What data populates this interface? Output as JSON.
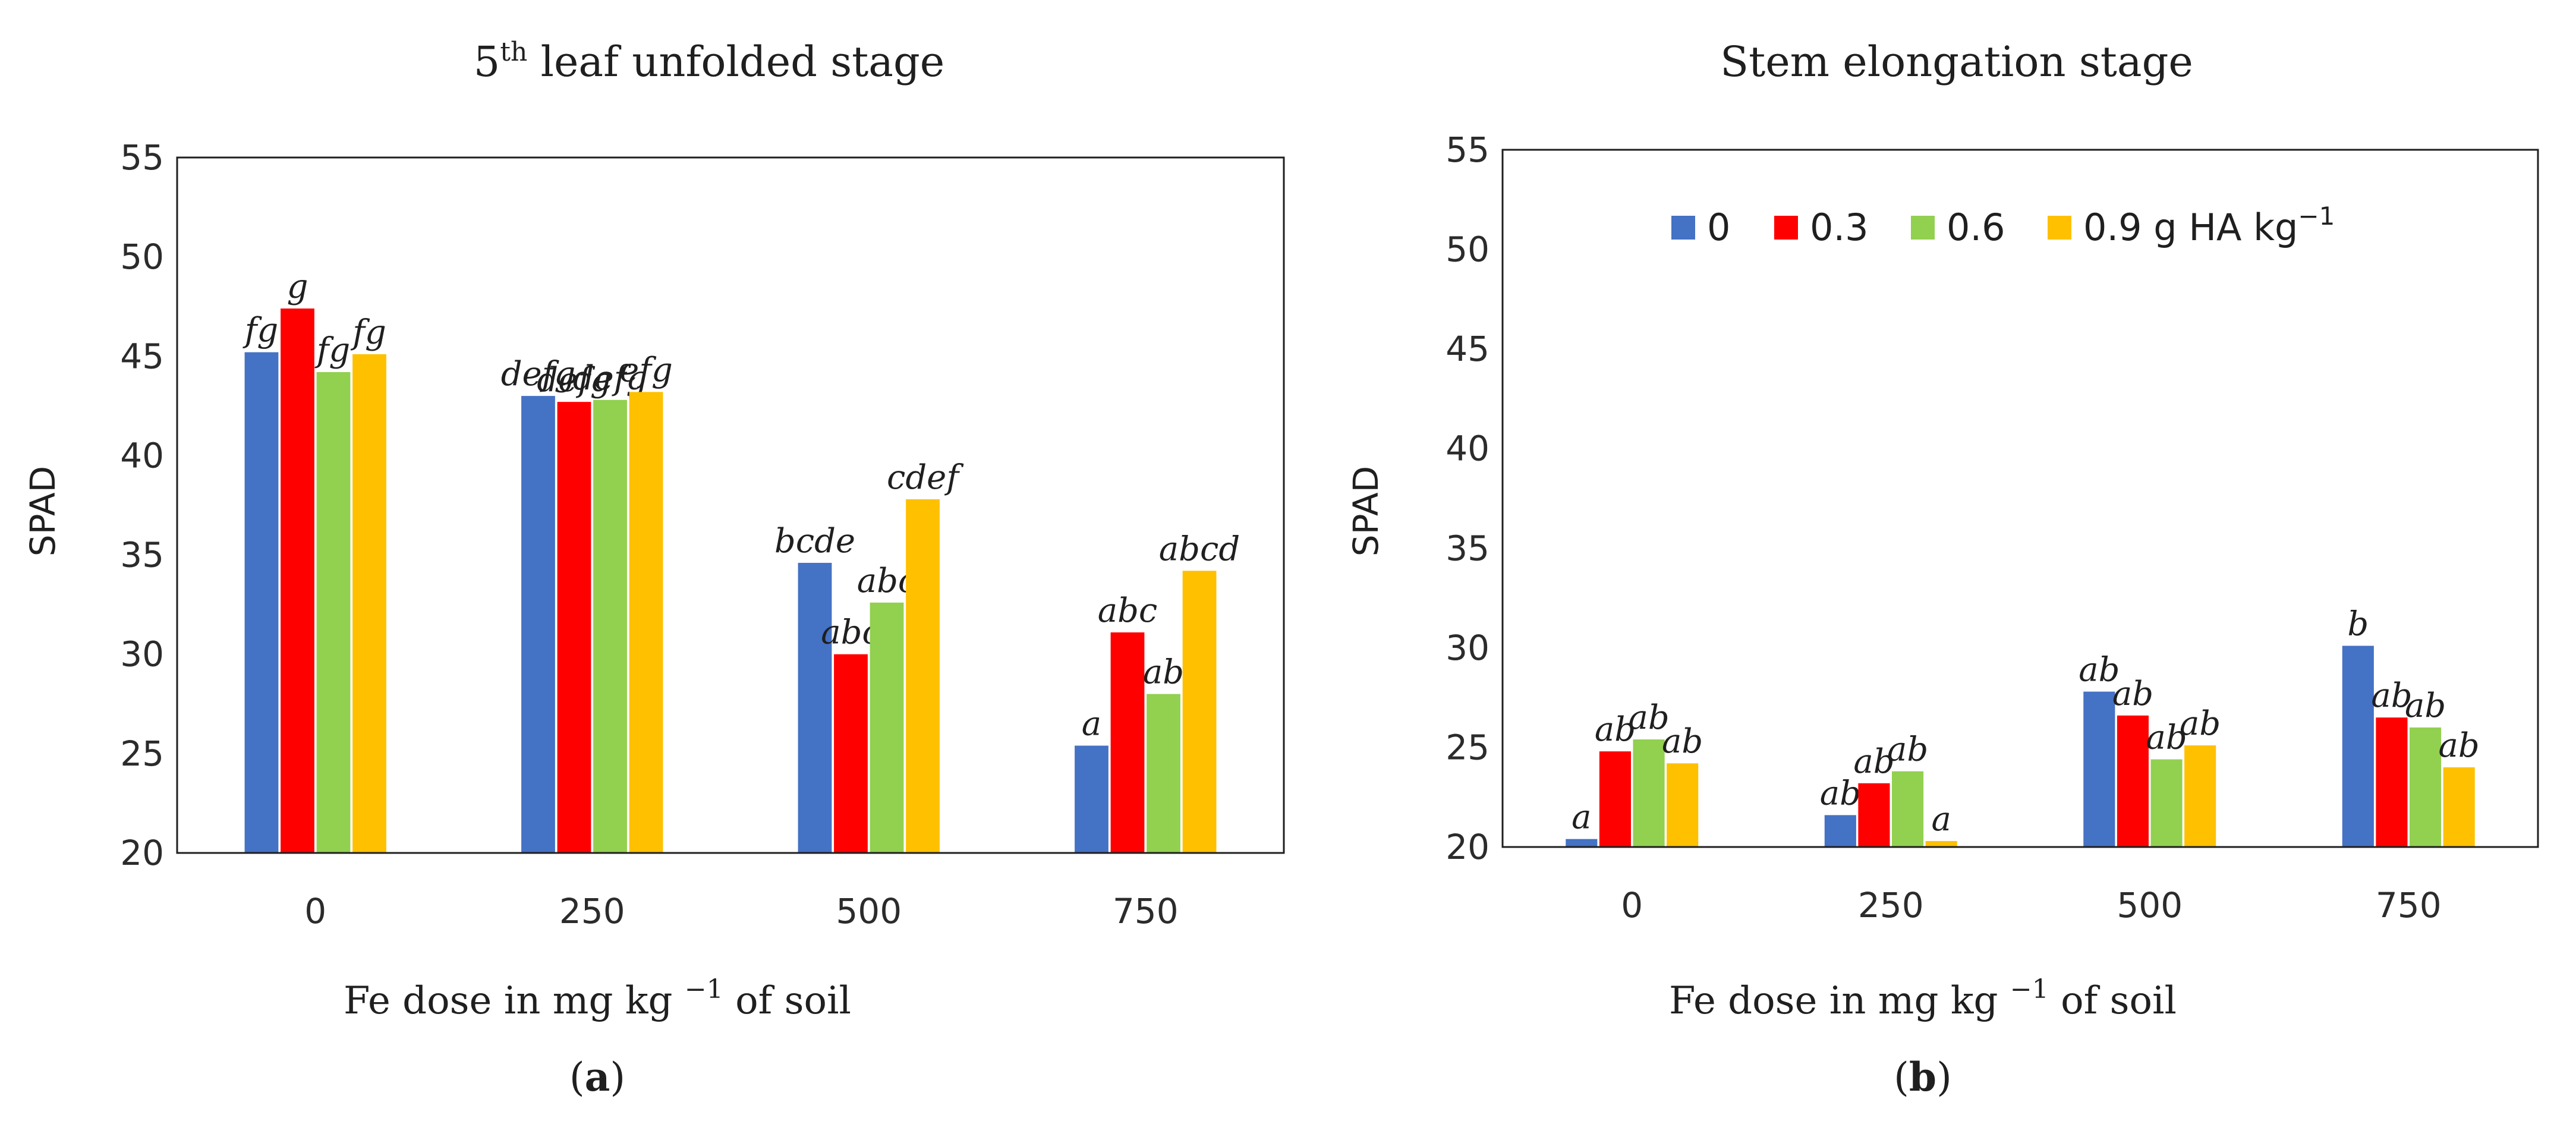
{
  "chart_data": [
    {
      "type": "bar",
      "title": "5th leaf unfolded stage",
      "title_base": "5",
      "title_sup": "th",
      "title_rest": " leaf unfolded stage",
      "xlabel": "Fe dose in mg kg −1 of soil",
      "xlabel_main": "Fe dose in mg kg ",
      "xlabel_sup": "−1",
      "xlabel_end": " of soil",
      "ylabel": "SPAD",
      "ylim": [
        20,
        55
      ],
      "yticks": [
        20,
        25,
        30,
        35,
        40,
        45,
        50,
        55
      ],
      "categories": [
        "0",
        "250",
        "500",
        "750"
      ],
      "panel_label": "(a)",
      "panel_open": "(",
      "panel_letter": "a",
      "panel_close": ")",
      "series": [
        {
          "name": "0",
          "color": "#4472C4",
          "values": [
            45.2,
            43.0,
            34.6,
            25.4
          ],
          "labels": [
            "fg",
            "defg",
            "bcde",
            "a"
          ]
        },
        {
          "name": "0.3",
          "color": "#FF0000",
          "values": [
            47.4,
            42.7,
            30.0,
            31.1
          ],
          "labels": [
            "g",
            "defg",
            "abc",
            "abc"
          ]
        },
        {
          "name": "0.6",
          "color": "#92D050",
          "values": [
            44.2,
            42.8,
            32.6,
            28.0
          ],
          "labels": [
            "fg",
            "defg",
            "abc",
            "ab"
          ]
        },
        {
          "name": "0.9 g HA kg−1",
          "color": "#FFC000",
          "values": [
            45.1,
            43.2,
            37.8,
            34.2
          ],
          "labels": [
            "fg",
            "efg",
            "cdef",
            "abcd"
          ]
        }
      ]
    },
    {
      "type": "bar",
      "title": "Stem elongation stage",
      "xlabel": "Fe dose in mg kg −1 of soil",
      "xlabel_main": "Fe dose in mg kg ",
      "xlabel_sup": "−1",
      "xlabel_end": " of soil",
      "ylabel": "SPAD",
      "ylim": [
        20,
        55
      ],
      "yticks": [
        20,
        25,
        30,
        35,
        40,
        45,
        50,
        55
      ],
      "categories": [
        "0",
        "250",
        "500",
        "750"
      ],
      "panel_label": "(b)",
      "panel_open": "(",
      "panel_letter": "b",
      "panel_close": ")",
      "legend": {
        "position": "top-center",
        "entries": [
          {
            "label": "0",
            "color": "#4472C4"
          },
          {
            "label": "0.3",
            "color": "#FF0000"
          },
          {
            "label": "0.6",
            "color": "#92D050"
          },
          {
            "label": "0.9 g HA kg",
            "sup": "−1",
            "color": "#FFC000"
          }
        ]
      },
      "series": [
        {
          "name": "0",
          "color": "#4472C4",
          "values": [
            20.4,
            21.6,
            27.8,
            30.1
          ],
          "labels": [
            "a",
            "ab",
            "ab",
            "b"
          ]
        },
        {
          "name": "0.3",
          "color": "#FF0000",
          "values": [
            24.8,
            23.2,
            26.6,
            26.5
          ],
          "labels": [
            "ab",
            "ab",
            "ab",
            "ab"
          ]
        },
        {
          "name": "0.6",
          "color": "#92D050",
          "values": [
            25.4,
            23.8,
            24.4,
            26.0
          ],
          "labels": [
            "ab",
            "ab",
            "ab",
            "ab"
          ]
        },
        {
          "name": "0.9 g HA kg−1",
          "color": "#FFC000",
          "values": [
            24.2,
            20.3,
            25.1,
            24.0
          ],
          "labels": [
            "ab",
            "a",
            "ab",
            "ab"
          ]
        }
      ]
    }
  ]
}
